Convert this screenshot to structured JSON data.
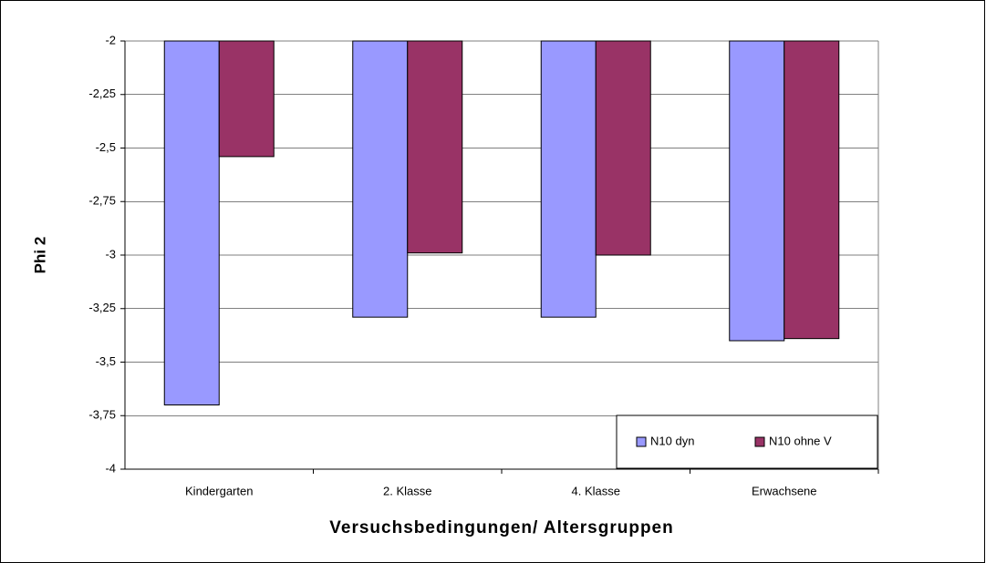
{
  "chart_data": {
    "type": "bar",
    "x_label": "Versuchsbedingungen/ Altersgruppen",
    "y_label": "Phi 2",
    "categories": [
      "Kindergarten",
      "2. Klasse",
      "4. Klasse",
      "Erwachsene"
    ],
    "series": [
      {
        "name": "N10 dyn",
        "color": "#9999ff",
        "values": [
          -3.7,
          -3.29,
          -3.29,
          -3.4
        ]
      },
      {
        "name": "N10 ohne V",
        "color": "#993366",
        "values": [
          -2.54,
          -2.99,
          -3.0,
          -3.39
        ]
      }
    ],
    "ylim": [
      -4,
      -2
    ],
    "yticks": [
      -4,
      {
        "value": -3.75,
        "label": "-3,75"
      },
      {
        "value": -3.5,
        "label": "-3,5"
      },
      {
        "value": -3.25,
        "label": "-3,25"
      },
      -3,
      {
        "value": -2.75,
        "label": "-2,75"
      },
      {
        "value": -2.5,
        "label": "-2,5"
      },
      {
        "value": -2.25,
        "label": "-2,25"
      },
      -2
    ],
    "grid": true,
    "legend": "bottom-right"
  }
}
